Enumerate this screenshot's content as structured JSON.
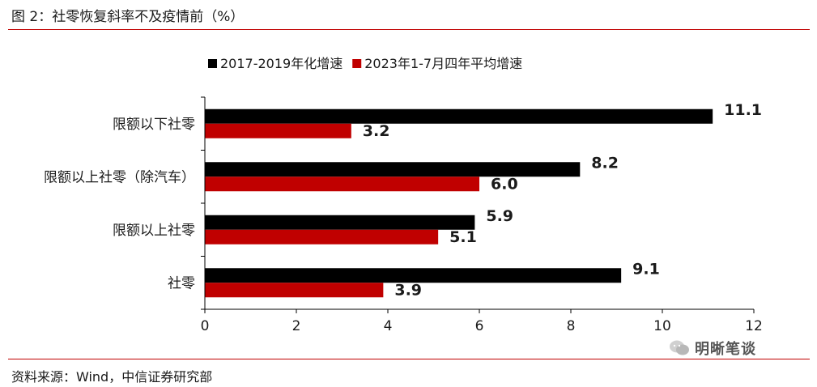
{
  "title": "图 2：社零恢复斜率不及疫情前（%）",
  "source": "资料来源：Wind，中信证券研究部",
  "watermark": "明晰笔谈",
  "chart_data": {
    "type": "bar",
    "orientation": "horizontal",
    "categories": [
      "限额以下社零",
      "限额以上社零（除汽车）",
      "限额以上社零",
      "社零"
    ],
    "series": [
      {
        "name": "2017-2019年化增速",
        "color": "#000000",
        "values": [
          11.1,
          8.2,
          5.9,
          9.1
        ],
        "labels": [
          "11.1",
          "8.2",
          "5.9",
          "9.1"
        ]
      },
      {
        "name": "2023年1-7月四年平均增速",
        "color": "#c00000",
        "values": [
          3.2,
          6.0,
          5.1,
          3.9
        ],
        "labels": [
          "3.2",
          "6.0",
          "5.1",
          "3.9"
        ]
      }
    ],
    "xlim": [
      0,
      12
    ],
    "xticks": [
      0,
      2,
      4,
      6,
      8,
      10,
      12
    ],
    "grid": false,
    "legend_position": "top"
  }
}
